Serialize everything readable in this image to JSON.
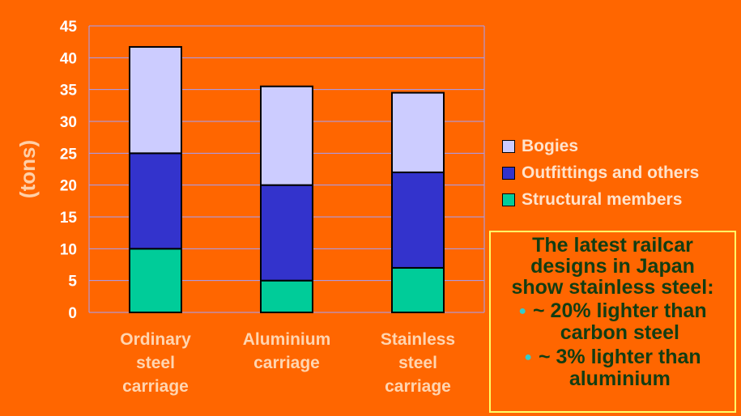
{
  "chart_data": {
    "type": "bar",
    "stacked": true,
    "categories": [
      [
        "Ordinary",
        "steel",
        "carriage"
      ],
      [
        "Aluminium",
        "carriage"
      ],
      [
        "Stainless",
        "steel",
        "carriage"
      ]
    ],
    "series": [
      {
        "name": "Structural members",
        "color": "#00CC99",
        "values": [
          10,
          5,
          7
        ]
      },
      {
        "name": "Outfittings and others",
        "color": "#3333CC",
        "values": [
          15,
          15,
          15
        ]
      },
      {
        "name": "Bogies",
        "color": "#CCCCFF",
        "values": [
          16.7,
          15.5,
          12.5
        ]
      }
    ],
    "ylabel": "(tons)",
    "ylim": [
      0,
      45
    ],
    "yticks": [
      "0",
      "5",
      "10",
      "15",
      "20",
      "25",
      "30",
      "35",
      "40",
      "45"
    ],
    "grid": "horizontal",
    "legend_position": "right"
  },
  "legend": {
    "items": [
      {
        "label": "Bogies",
        "color": "#CCCCFF"
      },
      {
        "label": "Outfittings and others",
        "color": "#3333CC"
      },
      {
        "label": "Structural members",
        "color": "#00CC99"
      }
    ]
  },
  "callout": {
    "heading": [
      "The latest railcar",
      "designs in Japan",
      "show stainless steel:"
    ],
    "bullets": [
      {
        "lines": [
          "~ 20% lighter than",
          "carbon steel"
        ]
      },
      {
        "lines": [
          "~ 3% lighter than",
          "aluminium"
        ]
      }
    ]
  },
  "colors": {
    "background": "#FF6600",
    "gridline": "#A0A0FF",
    "callout_border": "#FFFF66",
    "callout_text": "#123D12",
    "bullet": "#33CCCC"
  }
}
